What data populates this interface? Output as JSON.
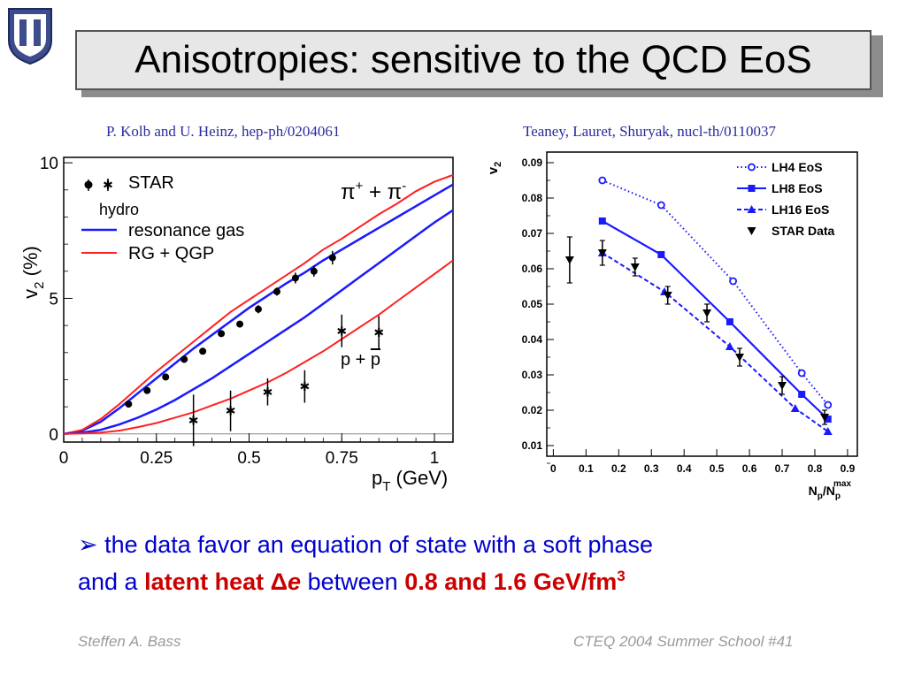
{
  "slide": {
    "title": "Anisotropies: sensitive to the QCD EoS",
    "citation_left": "P. Kolb and U. Heinz, hep-ph/0204061",
    "citation_right": "Teaney, Lauret, Shuryak, nucl-th/0110037",
    "bullet_arrow": "➢",
    "bullet_text_1": "the data favor an equation of state with a soft phase",
    "bullet_text_2": "and a",
    "bullet_red_1": "latent heat Δ",
    "bullet_red_italic": "e",
    "bullet_text_3": "between",
    "bullet_red_2": "0.8 and 1.6 GeV/fm",
    "bullet_red_sup": "3",
    "footer_left": "Steffen A. Bass",
    "footer_right": "CTEQ 2004 Summer School  #41",
    "logo_letters": "DU"
  },
  "colors": {
    "title_bg": "#e7e7e7",
    "text_blue": "#0000cc",
    "accent_red": "#cc0000",
    "line_blue": "#1a1aff",
    "line_red": "#ff2020"
  },
  "chart_data": [
    {
      "type": "line",
      "xlabel": "p_T (GeV)",
      "ylabel": "v_2 (%)",
      "xlim": [
        0,
        1.05
      ],
      "ylim": [
        -0.3,
        10.2
      ],
      "xticks": [
        0,
        0.25,
        0.5,
        0.75,
        1
      ],
      "xtick_labels": [
        "0",
        "0.25",
        "0.5",
        "0.75",
        "1"
      ],
      "yticks": [
        0,
        5,
        10
      ],
      "ytick_labels": [
        "0",
        "5",
        "10"
      ],
      "legend": {
        "star_label": "STAR",
        "hydro_label": "hydro",
        "resonance_label": "resonance gas",
        "rgqgp_label": "RG + QGP"
      },
      "annotations": {
        "pion_base": "π",
        "pion_plus": "+",
        "pion_mid": " + π",
        "pion_minus": "-",
        "proton_base": "p + ",
        "proton_bar": "p"
      },
      "series": [
        {
          "name": "STAR",
          "particle": "pion",
          "marker": "dot",
          "x": [
            0.175,
            0.225,
            0.275,
            0.325,
            0.375,
            0.425,
            0.475,
            0.525,
            0.575,
            0.625,
            0.675,
            0.725
          ],
          "y": [
            1.1,
            1.6,
            2.1,
            2.75,
            3.05,
            3.7,
            4.05,
            4.6,
            5.25,
            5.75,
            6.0,
            6.5
          ],
          "yerr": [
            0.1,
            0.1,
            0.1,
            0.1,
            0.1,
            0.12,
            0.12,
            0.15,
            0.15,
            0.2,
            0.2,
            0.25
          ]
        },
        {
          "name": "STAR",
          "particle": "proton",
          "marker": "star",
          "x": [
            0.35,
            0.45,
            0.55,
            0.65,
            0.75,
            0.85
          ],
          "y": [
            0.5,
            0.85,
            1.55,
            1.75,
            3.8,
            3.75
          ],
          "yerr": [
            0.95,
            0.75,
            0.5,
            0.6,
            0.6,
            0.6
          ]
        },
        {
          "name": "resonance gas",
          "particle": "pion",
          "style": "blue",
          "x": [
            0,
            0.05,
            0.1,
            0.15,
            0.2,
            0.25,
            0.3,
            0.35,
            0.4,
            0.45,
            0.5,
            0.55,
            0.6,
            0.65,
            0.7,
            0.75,
            0.8,
            0.85,
            0.9,
            0.95,
            1.0,
            1.05
          ],
          "y": [
            0,
            0.12,
            0.45,
            0.95,
            1.5,
            2.05,
            2.6,
            3.15,
            3.65,
            4.15,
            4.65,
            5.1,
            5.55,
            5.95,
            6.4,
            6.8,
            7.2,
            7.6,
            8.0,
            8.4,
            8.8,
            9.2
          ]
        },
        {
          "name": "RG + QGP",
          "particle": "pion",
          "style": "red",
          "x": [
            0,
            0.05,
            0.1,
            0.15,
            0.2,
            0.25,
            0.3,
            0.35,
            0.4,
            0.45,
            0.5,
            0.55,
            0.6,
            0.65,
            0.7,
            0.75,
            0.8,
            0.85,
            0.9,
            0.95,
            1.0,
            1.05
          ],
          "y": [
            0,
            0.15,
            0.55,
            1.1,
            1.7,
            2.3,
            2.85,
            3.4,
            3.95,
            4.5,
            4.95,
            5.4,
            5.85,
            6.3,
            6.8,
            7.2,
            7.65,
            8.1,
            8.5,
            8.95,
            9.3,
            9.55
          ]
        },
        {
          "name": "resonance gas",
          "particle": "proton",
          "style": "blue",
          "x": [
            0,
            0.05,
            0.1,
            0.15,
            0.2,
            0.25,
            0.3,
            0.35,
            0.4,
            0.45,
            0.5,
            0.55,
            0.6,
            0.65,
            0.7,
            0.75,
            0.8,
            0.85,
            0.9,
            0.95,
            1.0,
            1.05
          ],
          "y": [
            0,
            0.05,
            0.15,
            0.35,
            0.6,
            0.9,
            1.25,
            1.65,
            2.05,
            2.5,
            2.95,
            3.4,
            3.85,
            4.3,
            4.8,
            5.3,
            5.8,
            6.3,
            6.8,
            7.3,
            7.8,
            8.25
          ]
        },
        {
          "name": "RG + QGP",
          "particle": "proton",
          "style": "red",
          "x": [
            0,
            0.05,
            0.1,
            0.15,
            0.2,
            0.25,
            0.3,
            0.35,
            0.4,
            0.45,
            0.5,
            0.55,
            0.6,
            0.65,
            0.7,
            0.75,
            0.8,
            0.85,
            0.9,
            0.95,
            1.0,
            1.05
          ],
          "y": [
            0,
            0.02,
            0.05,
            0.12,
            0.25,
            0.4,
            0.6,
            0.8,
            1.05,
            1.3,
            1.6,
            1.9,
            2.25,
            2.65,
            3.05,
            3.5,
            3.95,
            4.4,
            4.9,
            5.4,
            5.9,
            6.4
          ]
        }
      ]
    },
    {
      "type": "line",
      "xlabel_base": "N",
      "xlabel_sub1": "p",
      "xlabel_mid": "/N",
      "xlabel_sub2": "p",
      "xlabel_sup": "max",
      "ylabel_base": "v",
      "ylabel_sub": "2",
      "xlim": [
        -0.02,
        0.93
      ],
      "ylim": [
        0.007,
        0.093
      ],
      "xticks": [
        0,
        0.1,
        0.2,
        0.3,
        0.4,
        0.5,
        0.6,
        0.7,
        0.8,
        0.9
      ],
      "xtick_labels": [
        "0",
        "0.1",
        "0.2",
        "0.3",
        "0.4",
        "0.5",
        "0.6",
        "0.7",
        "0.8",
        "0.9"
      ],
      "yticks": [
        0.01,
        0.02,
        0.03,
        0.04,
        0.05,
        0.06,
        0.07,
        0.08,
        0.09
      ],
      "ytick_labels": [
        "0.01",
        "0.02",
        "0.03",
        "0.04",
        "0.05",
        "0.06",
        "0.07",
        "0.08",
        "0.09"
      ],
      "series": [
        {
          "name": "LH4 EoS",
          "marker": "circle",
          "dash": "dotted",
          "x": [
            0.15,
            0.33,
            0.55,
            0.76,
            0.84
          ],
          "y": [
            0.085,
            0.078,
            0.0565,
            0.0305,
            0.0215
          ]
        },
        {
          "name": "LH8 EoS",
          "marker": "square",
          "dash": "solid",
          "x": [
            0.15,
            0.33,
            0.54,
            0.76,
            0.84
          ],
          "y": [
            0.0735,
            0.064,
            0.045,
            0.0245,
            0.0175
          ]
        },
        {
          "name": "LH16 EoS",
          "marker": "triangle-up",
          "dash": "dashed",
          "x": [
            0.15,
            0.34,
            0.54,
            0.74,
            0.84
          ],
          "y": [
            0.0645,
            0.0535,
            0.038,
            0.0205,
            0.014
          ]
        },
        {
          "name": "STAR Data",
          "marker": "triangle-down",
          "dash": "none",
          "x": [
            0.05,
            0.15,
            0.25,
            0.35,
            0.47,
            0.57,
            0.7,
            0.83
          ],
          "y": [
            0.0625,
            0.0645,
            0.0605,
            0.0525,
            0.0475,
            0.035,
            0.027,
            0.018
          ],
          "yerr": [
            0.0065,
            0.0035,
            0.0025,
            0.0025,
            0.0025,
            0.0025,
            0.0025,
            0.002
          ]
        }
      ]
    }
  ]
}
